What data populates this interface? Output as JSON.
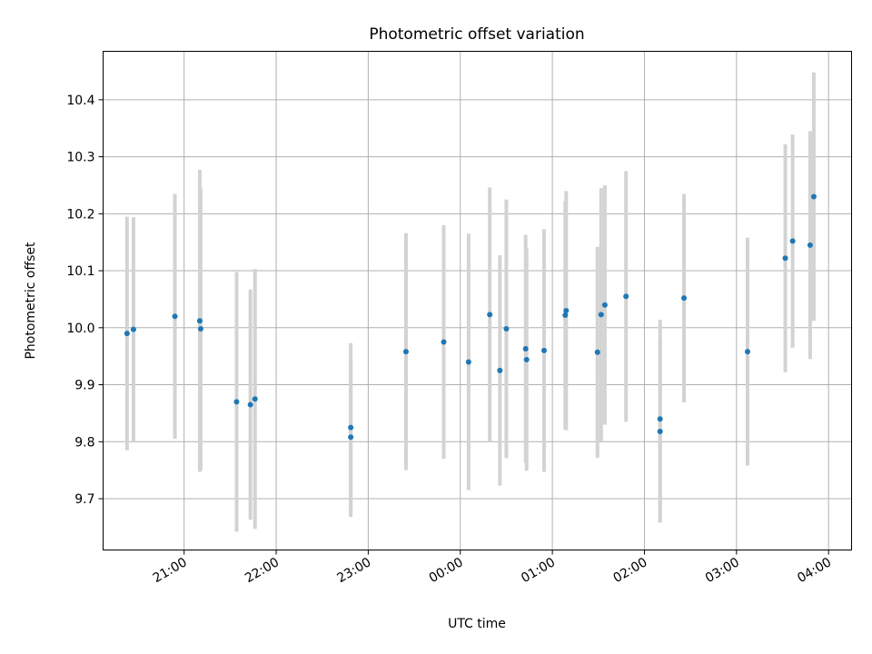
{
  "chart_data": {
    "type": "scatter",
    "title": "Photometric offset variation",
    "xlabel": "UTC time",
    "ylabel": "Photometric offset",
    "grid": true,
    "x_unit": "hours (UTC clock time, continuing past midnight)",
    "xlim": [
      20.12,
      28.25
    ],
    "ylim": [
      9.61,
      10.485
    ],
    "x_ticks": [
      {
        "value": 21,
        "label": "21:00"
      },
      {
        "value": 22,
        "label": "22:00"
      },
      {
        "value": 23,
        "label": "23:00"
      },
      {
        "value": 24,
        "label": "00:00"
      },
      {
        "value": 25,
        "label": "01:00"
      },
      {
        "value": 26,
        "label": "02:00"
      },
      {
        "value": 27,
        "label": "03:00"
      },
      {
        "value": 28,
        "label": "04:00"
      }
    ],
    "y_ticks": [
      {
        "value": 9.7,
        "label": "9.7"
      },
      {
        "value": 9.8,
        "label": "9.8"
      },
      {
        "value": 9.9,
        "label": "9.9"
      },
      {
        "value": 10.0,
        "label": "10.0"
      },
      {
        "value": 10.1,
        "label": "10.1"
      },
      {
        "value": 10.2,
        "label": "10.2"
      },
      {
        "value": 10.3,
        "label": "10.3"
      },
      {
        "value": 10.4,
        "label": "10.4"
      }
    ],
    "colors": {
      "point": "#1f77b4",
      "errorbar": "#d3d3d3"
    },
    "points": [
      {
        "x": 20.38,
        "y": 9.99,
        "err": 0.205
      },
      {
        "x": 20.45,
        "y": 9.997,
        "err": 0.197
      },
      {
        "x": 20.9,
        "y": 10.02,
        "err": 0.215
      },
      {
        "x": 21.17,
        "y": 10.012,
        "err": 0.265
      },
      {
        "x": 21.18,
        "y": 9.998,
        "err": 0.248
      },
      {
        "x": 21.57,
        "y": 9.87,
        "err": 0.228
      },
      {
        "x": 21.72,
        "y": 9.865,
        "err": 0.202
      },
      {
        "x": 21.77,
        "y": 9.875,
        "err": 0.228
      },
      {
        "x": 22.81,
        "y": 9.825,
        "err": 0.148
      },
      {
        "x": 22.81,
        "y": 9.808,
        "err": 0.14
      },
      {
        "x": 23.41,
        "y": 9.958,
        "err": 0.208
      },
      {
        "x": 23.82,
        "y": 9.975,
        "err": 0.205
      },
      {
        "x": 24.09,
        "y": 9.94,
        "err": 0.225
      },
      {
        "x": 24.32,
        "y": 10.023,
        "err": 0.223
      },
      {
        "x": 24.43,
        "y": 9.925,
        "err": 0.202
      },
      {
        "x": 24.5,
        "y": 9.998,
        "err": 0.227
      },
      {
        "x": 24.71,
        "y": 9.963,
        "err": 0.2
      },
      {
        "x": 24.72,
        "y": 9.944,
        "err": 0.195
      },
      {
        "x": 24.91,
        "y": 9.96,
        "err": 0.213
      },
      {
        "x": 25.14,
        "y": 10.022,
        "err": 0.2
      },
      {
        "x": 25.15,
        "y": 10.03,
        "err": 0.21
      },
      {
        "x": 25.49,
        "y": 9.957,
        "err": 0.185
      },
      {
        "x": 25.53,
        "y": 10.023,
        "err": 0.222
      },
      {
        "x": 25.57,
        "y": 10.04,
        "err": 0.21
      },
      {
        "x": 25.8,
        "y": 10.055,
        "err": 0.22
      },
      {
        "x": 26.17,
        "y": 9.84,
        "err": 0.174
      },
      {
        "x": 26.17,
        "y": 9.818,
        "err": 0.16
      },
      {
        "x": 26.43,
        "y": 10.052,
        "err": 0.183
      },
      {
        "x": 27.12,
        "y": 9.958,
        "err": 0.2
      },
      {
        "x": 27.53,
        "y": 10.122,
        "err": 0.2
      },
      {
        "x": 27.61,
        "y": 10.152,
        "err": 0.187
      },
      {
        "x": 27.8,
        "y": 10.145,
        "err": 0.2
      },
      {
        "x": 27.84,
        "y": 10.23,
        "err": 0.218
      }
    ]
  }
}
